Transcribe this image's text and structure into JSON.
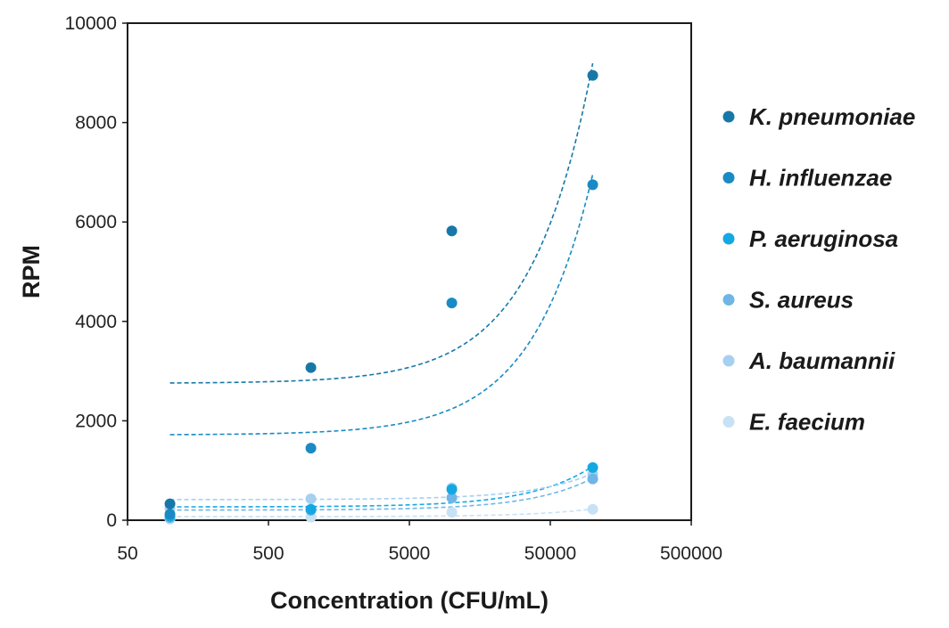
{
  "chart_data": {
    "type": "scatter",
    "title": "",
    "xlabel": "Concentration (CFU/mL)",
    "ylabel": "RPM",
    "x_scale": "log",
    "xlim": [
      50,
      500000
    ],
    "ylim": [
      0,
      10000
    ],
    "x_ticks": [
      "50",
      "500",
      "5000",
      "50000",
      "500000"
    ],
    "y_ticks": [
      "0",
      "2000",
      "4000",
      "6000",
      "8000",
      "10000"
    ],
    "x": [
      100,
      1000,
      10000,
      100000
    ],
    "grid": false,
    "legend_position": "right",
    "trendlines": "linear, dashed",
    "series": [
      {
        "name": "K. pneumoniae",
        "color": "#1778a8",
        "values": [
          330,
          3070,
          5820,
          8950
        ]
      },
      {
        "name": "H. influenzae",
        "color": "#1a8ac4",
        "values": [
          120,
          1450,
          4370,
          6750
        ]
      },
      {
        "name": "P. aeruginosa",
        "color": "#14a8e3",
        "values": [
          80,
          220,
          620,
          1060
        ]
      },
      {
        "name": "S. aureus",
        "color": "#6fb6e6",
        "values": [
          50,
          200,
          450,
          830
        ]
      },
      {
        "name": "A. baumannii",
        "color": "#a6d0f0",
        "values": [
          240,
          430,
          650,
          920
        ]
      },
      {
        "name": "E. faecium",
        "color": "#c7e1f5",
        "values": [
          20,
          60,
          160,
          220
        ]
      }
    ]
  }
}
